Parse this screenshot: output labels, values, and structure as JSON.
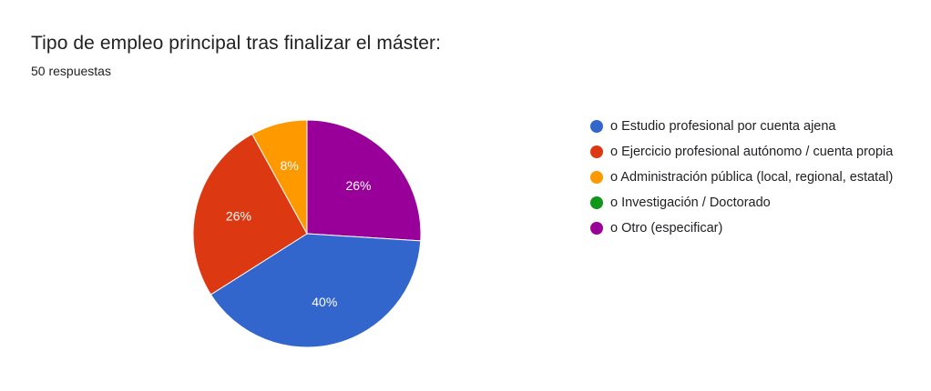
{
  "chart_data": {
    "type": "pie",
    "title": "Tipo de empleo principal tras finalizar el máster:",
    "subtitle": "50 respuestas",
    "categories": [
      "o Estudio profesional por cuenta ajena",
      "o Ejercicio profesional autónomo / cuenta propia",
      "o Administración pública (local, regional, estatal)",
      "o Investigación / Doctorado",
      "o Otro (especificar)"
    ],
    "values": [
      40,
      26,
      8,
      0,
      26
    ],
    "slice_labels": [
      "40%",
      "26%",
      "8%",
      "",
      "26%"
    ],
    "colors": [
      "#3366cc",
      "#dc3912",
      "#ff9900",
      "#109618",
      "#990099"
    ],
    "legend_position": "right"
  }
}
